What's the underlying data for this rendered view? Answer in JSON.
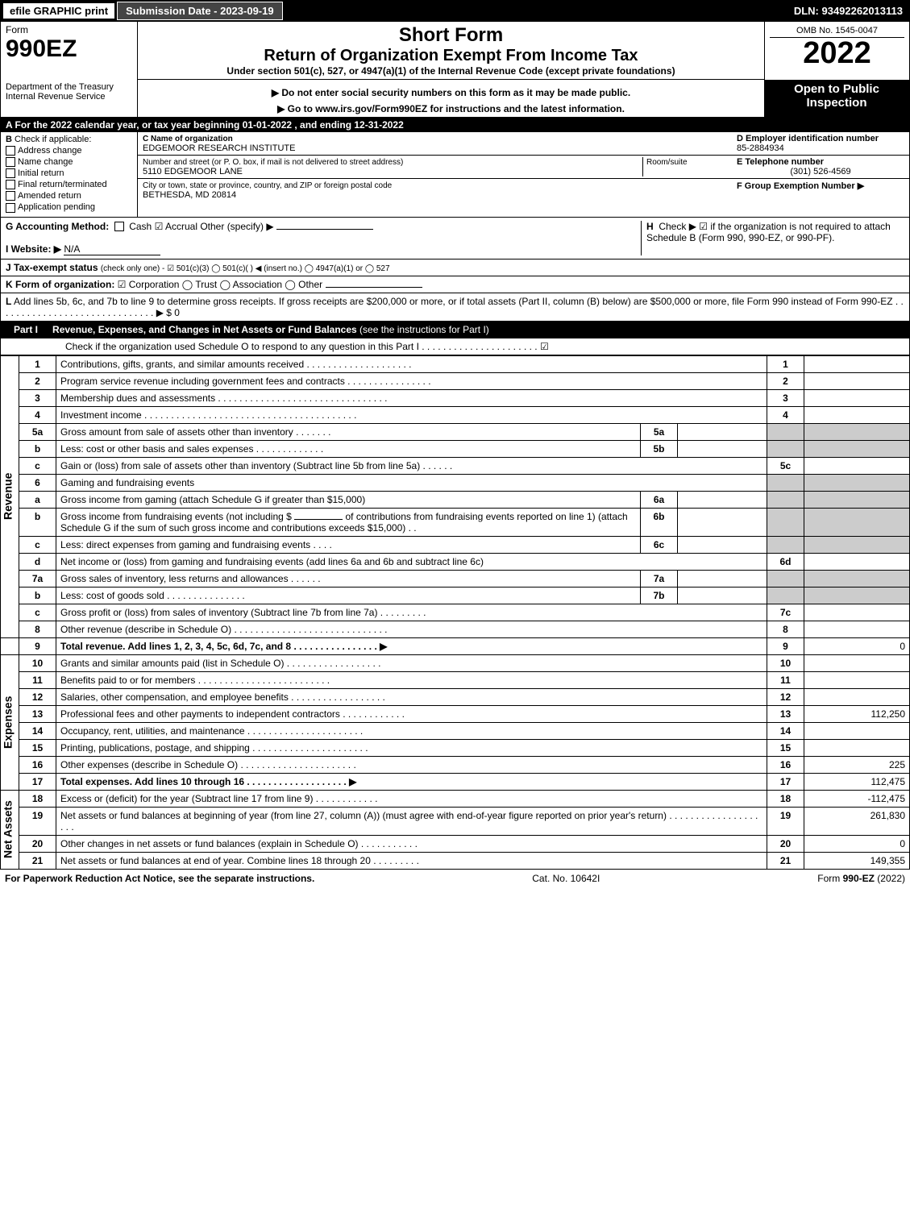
{
  "topbar": {
    "efile": "efile GRAPHIC print",
    "submission_label": "Submission Date - 2023-09-19",
    "dln": "DLN: 93492262013113"
  },
  "header": {
    "form_label": "Form",
    "form_code": "990EZ",
    "dept": "Department of the Treasury\nInternal Revenue Service",
    "title_main": "Short Form",
    "title_sub": "Return of Organization Exempt From Income Tax",
    "title_note": "Under section 501(c), 527, or 4947(a)(1) of the Internal Revenue Code (except private foundations)",
    "note1": "▶ Do not enter social security numbers on this form as it may be made public.",
    "note2": "▶ Go to www.irs.gov/Form990EZ for instructions and the latest information.",
    "omb": "OMB No. 1545-0047",
    "year": "2022",
    "open": "Open to Public Inspection"
  },
  "row_a": "A  For the 2022 calendar year, or tax year beginning 01-01-2022 , and ending 12-31-2022",
  "section_b": {
    "b_label": "B",
    "check_if": "Check if applicable:",
    "opts": [
      "Address change",
      "Name change",
      "Initial return",
      "Final return/terminated",
      "Amended return",
      "Application pending"
    ],
    "c_label": "C Name of organization",
    "c_name": "EDGEMOOR RESEARCH INSTITUTE",
    "street_label": "Number and street (or P. O. box, if mail is not delivered to street address)",
    "room_label": "Room/suite",
    "street": "5110 EDGEMOOR LANE",
    "city_label": "City or town, state or province, country, and ZIP or foreign postal code",
    "city": "BETHESDA, MD  20814",
    "d_label": "D Employer identification number",
    "d_val": "85-2884934",
    "e_label": "E Telephone number",
    "e_val": "(301) 526-4569",
    "f_label": "F Group Exemption Number ▶"
  },
  "gh": {
    "g_label": "G Accounting Method:",
    "g_opts": "Cash   ☑ Accrual   Other (specify) ▶",
    "h_label": "H",
    "h_text": "Check ▶ ☑ if the organization is not required to attach Schedule B (Form 990, 990-EZ, or 990-PF).",
    "i_label": "I Website: ▶",
    "i_val": "N/A",
    "j_label": "J Tax-exempt status",
    "j_text": "(check only one) - ☑ 501(c)(3)  ◯ 501(c)(  ) ◀ (insert no.)  ◯ 4947(a)(1) or  ◯ 527",
    "k_label": "K Form of organization:",
    "k_text": "☑ Corporation   ◯ Trust   ◯ Association   ◯ Other",
    "l_label": "L",
    "l_text": "Add lines 5b, 6c, and 7b to line 9 to determine gross receipts. If gross receipts are $200,000 or more, or if total assets (Part II, column (B) below) are $500,000 or more, file Form 990 instead of Form 990-EZ . . . . . . . . . . . . . . . . . . . . . . . . . . . . . . ▶ $ 0"
  },
  "part1": {
    "label": "Part I",
    "title": "Revenue, Expenses, and Changes in Net Assets or Fund Balances",
    "note": "(see the instructions for Part I)",
    "check_line": "Check if the organization used Schedule O to respond to any question in this Part I . . . . . . . . . . . . . . . . . . . . . . ☑"
  },
  "revenue_label": "Revenue",
  "expenses_label": "Expenses",
  "netassets_label": "Net Assets",
  "lines": {
    "l1": {
      "n": "1",
      "t": "Contributions, gifts, grants, and similar amounts received . . . . . . . . . . . . . . . . . . . .",
      "rn": "1",
      "v": ""
    },
    "l2": {
      "n": "2",
      "t": "Program service revenue including government fees and contracts . . . . . . . . . . . . . . . .",
      "rn": "2",
      "v": ""
    },
    "l3": {
      "n": "3",
      "t": "Membership dues and assessments . . . . . . . . . . . . . . . . . . . . . . . . . . . . . . . .",
      "rn": "3",
      "v": ""
    },
    "l4": {
      "n": "4",
      "t": "Investment income . . . . . . . . . . . . . . . . . . . . . . . . . . . . . . . . . . . . . . . .",
      "rn": "4",
      "v": ""
    },
    "l5a": {
      "n": "5a",
      "t": "Gross amount from sale of assets other than inventory . . . . . . .",
      "sn": "5a",
      "sv": ""
    },
    "l5b": {
      "n": "b",
      "t": "Less: cost or other basis and sales expenses . . . . . . . . . . . . .",
      "sn": "5b",
      "sv": ""
    },
    "l5c": {
      "n": "c",
      "t": "Gain or (loss) from sale of assets other than inventory (Subtract line 5b from line 5a) . . . . . .",
      "rn": "5c",
      "v": ""
    },
    "l6": {
      "n": "6",
      "t": "Gaming and fundraising events"
    },
    "l6a": {
      "n": "a",
      "t": "Gross income from gaming (attach Schedule G if greater than $15,000)",
      "sn": "6a",
      "sv": ""
    },
    "l6b": {
      "n": "b",
      "t": "Gross income from fundraising events (not including $",
      "t2": "of contributions from fundraising events reported on line 1) (attach Schedule G if the sum of such gross income and contributions exceeds $15,000)    .   .",
      "sn": "6b",
      "sv": ""
    },
    "l6c": {
      "n": "c",
      "t": "Less: direct expenses from gaming and fundraising events    .   .   .   .",
      "sn": "6c",
      "sv": ""
    },
    "l6d": {
      "n": "d",
      "t": "Net income or (loss) from gaming and fundraising events (add lines 6a and 6b and subtract line 6c)",
      "rn": "6d",
      "v": ""
    },
    "l7a": {
      "n": "7a",
      "t": "Gross sales of inventory, less returns and allowances . . . . . .",
      "sn": "7a",
      "sv": ""
    },
    "l7b": {
      "n": "b",
      "t": "Less: cost of goods sold         .   .   .   .   .   .   .   .   .   .   .   .   .   .   .",
      "sn": "7b",
      "sv": ""
    },
    "l7c": {
      "n": "c",
      "t": "Gross profit or (loss) from sales of inventory (Subtract line 7b from line 7a) . . . . . . . . .",
      "rn": "7c",
      "v": ""
    },
    "l8": {
      "n": "8",
      "t": "Other revenue (describe in Schedule O) . . . . . . . . . . . . . . . . . . . . . . . . . . . . .",
      "rn": "8",
      "v": ""
    },
    "l9": {
      "n": "9",
      "t": "Total revenue. Add lines 1, 2, 3, 4, 5c, 6d, 7c, and 8  .  .  .  .  .  .  .  .  .  .  .  .  .  .  .  . ▶",
      "rn": "9",
      "v": "0",
      "bold": true
    },
    "l10": {
      "n": "10",
      "t": "Grants and similar amounts paid (list in Schedule O) .  .  .  .  .  .  .  .  .  .  .  .  .  .  .  .  .  .",
      "rn": "10",
      "v": ""
    },
    "l11": {
      "n": "11",
      "t": "Benefits paid to or for members     .  .  .  .  .  .  .  .  .  .  .  .  .  .  .  .  .  .  .  .  .  .  .  .  .",
      "rn": "11",
      "v": ""
    },
    "l12": {
      "n": "12",
      "t": "Salaries, other compensation, and employee benefits .  .  .  .  .  .  .  .  .  .  .  .  .  .  .  .  .  .",
      "rn": "12",
      "v": ""
    },
    "l13": {
      "n": "13",
      "t": "Professional fees and other payments to independent contractors .  .  .  .  .  .  .  .  .  .  .  .",
      "rn": "13",
      "v": "112,250"
    },
    "l14": {
      "n": "14",
      "t": "Occupancy, rent, utilities, and maintenance .  .  .  .  .  .  .  .  .  .  .  .  .  .  .  .  .  .  .  .  .  .",
      "rn": "14",
      "v": ""
    },
    "l15": {
      "n": "15",
      "t": "Printing, publications, postage, and shipping .  .  .  .  .  .  .  .  .  .  .  .  .  .  .  .  .  .  .  .  .  .",
      "rn": "15",
      "v": ""
    },
    "l16": {
      "n": "16",
      "t": "Other expenses (describe in Schedule O)    .  .  .  .  .  .  .  .  .  .  .  .  .  .  .  .  .  .  .  .  .  .",
      "rn": "16",
      "v": "225"
    },
    "l17": {
      "n": "17",
      "t": "Total expenses. Add lines 10 through 16     .  .  .  .  .  .  .  .  .  .  .  .  .  .  .  .  .  .  . ▶",
      "rn": "17",
      "v": "112,475",
      "bold": true
    },
    "l18": {
      "n": "18",
      "t": "Excess or (deficit) for the year (Subtract line 17 from line 9)       .  .  .  .  .  .  .  .  .  .  .  .",
      "rn": "18",
      "v": "-112,475"
    },
    "l19": {
      "n": "19",
      "t": "Net assets or fund balances at beginning of year (from line 27, column (A)) (must agree with end-of-year figure reported on prior year's return) .  .  .  .  .  .  .  .  .  .  .  .  .  .  .  .  .  .  .  .",
      "rn": "19",
      "v": "261,830"
    },
    "l20": {
      "n": "20",
      "t": "Other changes in net assets or fund balances (explain in Schedule O) .  .  .  .  .  .  .  .  .  .  .",
      "rn": "20",
      "v": "0"
    },
    "l21": {
      "n": "21",
      "t": "Net assets or fund balances at end of year. Combine lines 18 through 20 .  .  .  .  .  .  .  .  .",
      "rn": "21",
      "v": "149,355"
    }
  },
  "footer": {
    "left": "For Paperwork Reduction Act Notice, see the separate instructions.",
    "mid": "Cat. No. 10642I",
    "right_prefix": "Form ",
    "right_form": "990-EZ",
    "right_suffix": " (2022)"
  },
  "colors": {
    "black": "#000000",
    "white": "#ffffff",
    "grey": "#cccccc",
    "darknavy": "#00008b"
  }
}
